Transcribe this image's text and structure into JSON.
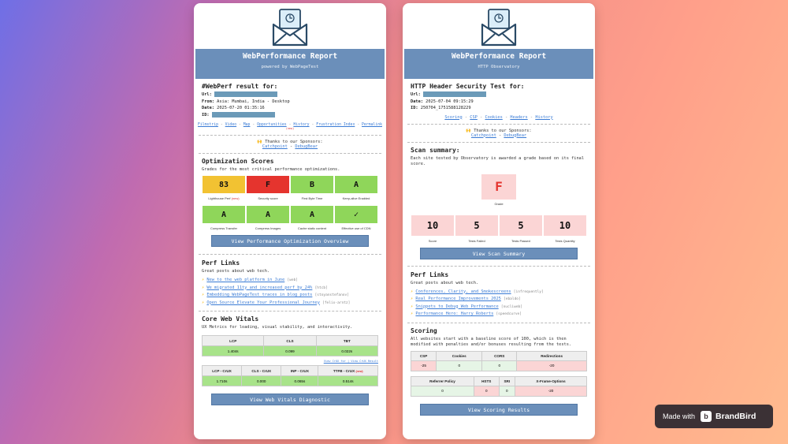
{
  "card_a": {
    "title": "WebPerformance Report",
    "subtitle": "powered by WebPageTest",
    "result_heading": "#WebPerf result for:",
    "url_label": "Url:",
    "from_label": "From:",
    "from_value": "Asia: Mumbai, India - Desktop",
    "date_label": "Date:",
    "date_value": "2025-07-20 01:35:16",
    "id_label": "ID:",
    "links": [
      "Filmstrip",
      "Video",
      "Map",
      "Opportunities",
      "History",
      "Frustration Index",
      "Permalink"
    ],
    "links_new": "(new)",
    "sponsors_text": "🙌 Thanks to our Sponsors:",
    "sponsors": [
      "Catchpoint",
      "DebugBear"
    ],
    "opt_title": "Optimization Scores",
    "opt_sub": "Grades for the most critical performance optimizations.",
    "scores_row1": [
      {
        "value": "83",
        "label": "Lighthouse Perf",
        "color": "#f2c232",
        "new": "(new)"
      },
      {
        "value": "F",
        "label": "Security score",
        "color": "#e5342e"
      },
      {
        "value": "B",
        "label": "First Byte Time",
        "color": "#8fd65a"
      },
      {
        "value": "A",
        "label": "Keep-alive Enabled",
        "color": "#8fd65a"
      }
    ],
    "scores_row2": [
      {
        "value": "A",
        "label": "Compress Transfer",
        "color": "#8fd65a"
      },
      {
        "value": "A",
        "label": "Compress Images",
        "color": "#8fd65a"
      },
      {
        "value": "A",
        "label": "Cache static content",
        "color": "#8fd65a"
      },
      {
        "value": "✓",
        "label": "Effective use of CDN",
        "color": "#8fd65a"
      }
    ],
    "opt_button": "View Performance Optimization Overview",
    "perf_title": "Perf Links",
    "perf_sub": "Great posts about web tech.",
    "perf_links": [
      {
        "text": "New to the web platform in June",
        "tag": "[web]"
      },
      {
        "text": "We migrated 11ty and increased perf by 24%",
        "tag": "[htcb]"
      },
      {
        "text": "Embedding WebPageTest traces in blog posts",
        "tag": "[stoyanstefanov]"
      },
      {
        "text": "Open Source Elevate Your Professional Journey",
        "tag": "[felix-arntz]"
      }
    ],
    "cwv_title": "Core Web Vitals",
    "cwv_sub": "UX Metrics for loading, visual stability, and interactivity.",
    "cwv_headers": [
      "LCP",
      "CLS",
      "TBT"
    ],
    "cwv_values": [
      "1.404s",
      "0.099",
      "0.022s"
    ],
    "cwv_links": "View CrUX for | View CrUX Result",
    "crux_headers": [
      "LCP - CrUX",
      "CLS - CrUX",
      "INP - CrUX",
      "TTFB - CrUX"
    ],
    "crux_new": "(new)",
    "crux_values": [
      "1.710s",
      "0.000",
      "0.065s",
      "0.514s"
    ],
    "cwv_button": "View Web Vitals Diagnostic"
  },
  "card_b": {
    "title": "WebPerformance Report",
    "subtitle": "HTTP Observatory",
    "result_heading": "HTTP Header Security Test for:",
    "url_label": "Url:",
    "date_label": "Date:",
    "date_value": "2025-07-04 09:15:29",
    "id_label": "ID:",
    "id_value": "250704_1751588128229",
    "links": [
      "Scoring",
      "CSP",
      "Cookies",
      "Headers",
      "History"
    ],
    "sponsors_text": "🙌 Thanks to our Sponsors:",
    "sponsors": [
      "Catchpoint",
      "DebugBear"
    ],
    "scan_title": "Scan summary:",
    "scan_sub": "Each site tested by Observatory is awarded a grade based on its final score.",
    "grade": "F",
    "grade_label": "Grade",
    "stats": [
      {
        "value": "10",
        "label": "Score"
      },
      {
        "value": "5",
        "label": "Tests Failed"
      },
      {
        "value": "5",
        "label": "Tests Passed"
      },
      {
        "value": "10",
        "label": "Tests Quantity"
      }
    ],
    "scan_button": "View Scan Summary",
    "perf_title": "Perf Links",
    "perf_sub": "Great posts about web tech.",
    "perf_links": [
      {
        "text": "Conferences, Clarity, and Smokescreens",
        "tag": "[infrequently]"
      },
      {
        "text": "Real Performance Improvements 2025",
        "tag": "[ebaldo]"
      },
      {
        "text": "Snippets to Debug Web Performance",
        "tag": "[nucliweb]"
      },
      {
        "text": "Performance Hero: Harry Roberts",
        "tag": "[speedcurve]"
      }
    ],
    "scoring_title": "Scoring",
    "scoring_sub": "All websites start with a baseline score of 100, which is then modified with penalties and/or bonuses resulting from the tests.",
    "scoring_h1": [
      "CSP",
      "Cookies",
      "CORS",
      "Redirections"
    ],
    "scoring_v1": [
      "-25",
      "0",
      "0",
      "-20"
    ],
    "scoring_h2": [
      "Referrer Policy",
      "HSTS",
      "SRI",
      "X-Frame-Options"
    ],
    "scoring_v2": [
      "0",
      "0",
      "0",
      "-20"
    ],
    "scoring_button": "View Scoring Results"
  },
  "brandbird": {
    "made_with": "Made with",
    "name": "BrandBird"
  }
}
